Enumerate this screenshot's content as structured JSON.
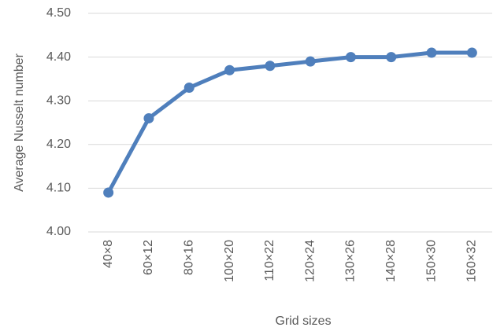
{
  "chart_data": {
    "type": "line",
    "x_label": "Grid sizes",
    "y_label": "Average Nusselt number",
    "categories": [
      "40×8",
      "60×12",
      "80×16",
      "100×20",
      "110×22",
      "120×24",
      "130×26",
      "140×28",
      "150×30",
      "160×32"
    ],
    "series": [
      {
        "color": "#4f7fbc",
        "values": [
          4.09,
          4.26,
          4.33,
          4.37,
          4.38,
          4.39,
          4.4,
          4.4,
          4.41,
          4.41
        ]
      }
    ],
    "ylim": [
      4.0,
      4.5
    ],
    "yticks": [
      {
        "value": 4.0,
        "label": "4.00"
      },
      {
        "value": 4.1,
        "label": "4.10"
      },
      {
        "value": 4.2,
        "label": "4.20"
      },
      {
        "value": 4.3,
        "label": "4.30"
      },
      {
        "value": 4.4,
        "label": "4.40"
      },
      {
        "value": 4.5,
        "label": "4.50"
      }
    ],
    "grid": true
  }
}
